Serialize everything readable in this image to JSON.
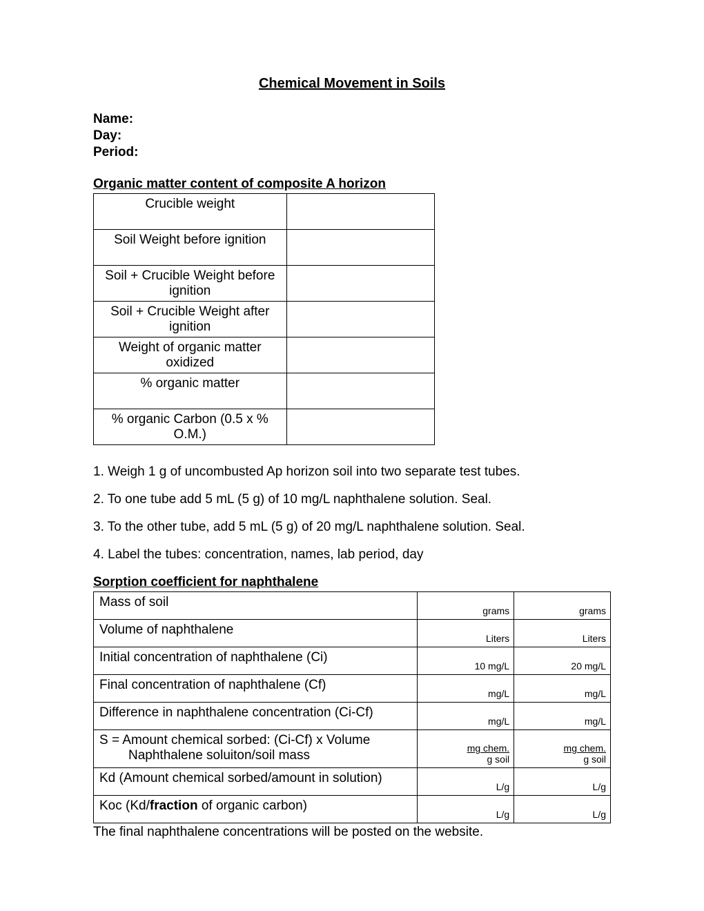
{
  "title": "Chemical Movement in Soils",
  "fields": {
    "name_label": "Name:",
    "day_label": "Day:",
    "period_label": "Period:"
  },
  "section1": {
    "heading": "Organic matter content of composite A horizon",
    "rows": [
      "Crucible weight",
      "Soil Weight before ignition",
      "Soil + Crucible Weight before ignition",
      "Soil + Crucible Weight after ignition",
      "Weight of organic matter oxidized",
      "% organic matter",
      "% organic Carbon (0.5 x % O.M.)"
    ]
  },
  "steps": [
    "1. Weigh 1 g of uncombusted Ap horizon soil into two separate test tubes.",
    "2. To one tube add 5 mL (5 g) of 10 mg/L naphthalene solution. Seal.",
    "3. To the other tube, add 5 mL (5 g) of 20 mg/L naphthalene solution. Seal.",
    "4. Label the tubes: concentration, names, lab period, day"
  ],
  "section2": {
    "heading": "Sorption coefficient for naphthalene",
    "rows": [
      {
        "label": "Mass of soil",
        "unit1": "grams",
        "unit2": "grams"
      },
      {
        "label": "Volume of naphthalene",
        "unit1": "Liters",
        "unit2": "Liters"
      },
      {
        "label": "Initial concentration of naphthalene (Ci)",
        "unit1": "10 mg/L",
        "unit2": "20 mg/L"
      },
      {
        "label": "Final concentration of naphthalene (Cf)",
        "unit1": "mg/L",
        "unit2": "mg/L"
      },
      {
        "label": "Difference in naphthalene concentration (Ci-Cf)",
        "unit1": "mg/L",
        "unit2": "mg/L"
      },
      {
        "label_top": "S = Amount chemical sorbed: (Ci-Cf) x Volume",
        "label_bottom": "Naphthalene soluiton/soil mass",
        "frac_top": "mg chem.",
        "frac_bot": "g soil"
      },
      {
        "label": "Kd (Amount chemical sorbed/amount in solution)",
        "unit1": "L/g",
        "unit2": "L/g"
      },
      {
        "label_pre": "Koc (Kd/",
        "label_bold": "fraction",
        "label_post": " of organic carbon)",
        "unit1": "L/g",
        "unit2": "L/g"
      }
    ]
  },
  "footer": "The final naphthalene concentrations will be posted on the website."
}
